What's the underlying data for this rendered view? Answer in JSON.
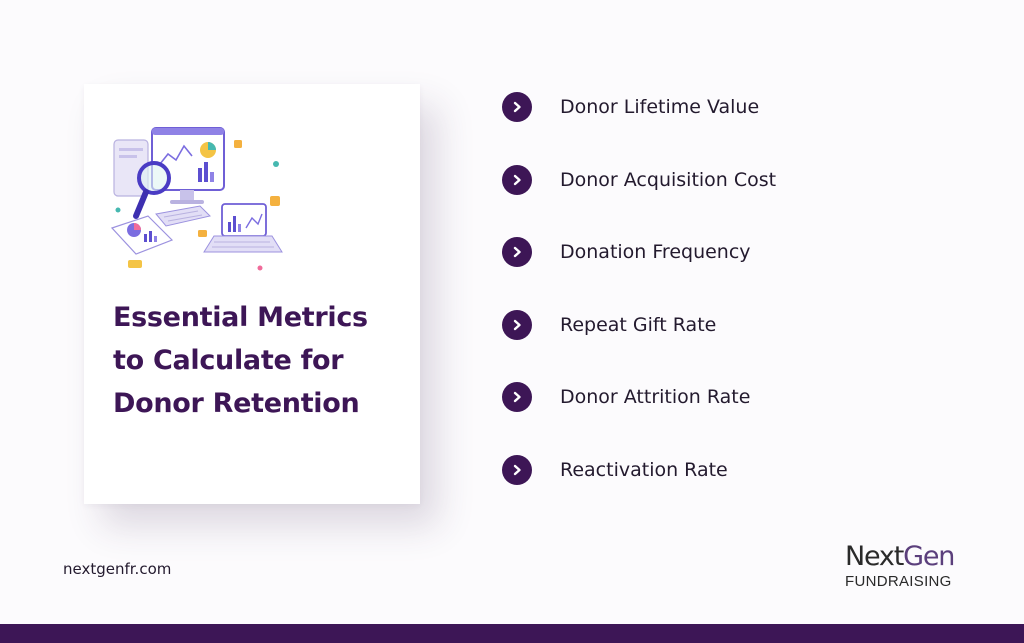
{
  "card": {
    "title_lines": [
      "Essential Metrics",
      "to Calculate for",
      "Donor Retention"
    ],
    "illustration_icon": "analytics-monitor-magnifier-icon"
  },
  "metrics": [
    {
      "label": "Donor Lifetime Value",
      "icon": "chevron-right-icon"
    },
    {
      "label": "Donor Acquisition Cost",
      "icon": "chevron-right-icon"
    },
    {
      "label": "Donation Frequency",
      "icon": "chevron-right-icon"
    },
    {
      "label": "Repeat Gift Rate",
      "icon": "chevron-right-icon"
    },
    {
      "label": "Donor Attrition Rate",
      "icon": "chevron-right-icon"
    },
    {
      "label": "Reactivation Rate",
      "icon": "chevron-right-icon"
    }
  ],
  "footer": {
    "website": "nextgenfr.com",
    "logo_next": "Next",
    "logo_gen": "Gen",
    "logo_sub": "FUNDRAISING"
  },
  "colors": {
    "brand_purple": "#3d1656",
    "logo_gen_purple": "#5b3f7c",
    "background": "#fcfbfd"
  }
}
